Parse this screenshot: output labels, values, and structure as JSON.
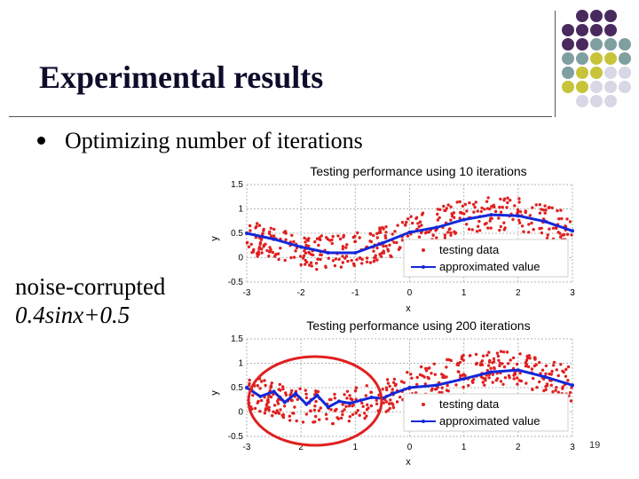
{
  "slide": {
    "title": "Experimental results",
    "bullet": "Optimizing number of iterations",
    "side_line1": "noise-corrupted",
    "side_line2": "0.4sinx+0.5",
    "page_number": "19"
  },
  "theme": {
    "dot_colors": [
      "#4a2a5e",
      "#7f9fa0",
      "#c8c43a",
      "#d9d6e6"
    ],
    "point_color": "#e02020",
    "line_color": "#1428d8",
    "ellipse_color": "#e02020"
  },
  "chart_data": [
    {
      "type": "scatter",
      "title": "Testing performance using 10 iterations",
      "xlabel": "x",
      "ylabel": "y",
      "xlim": [
        -3,
        3
      ],
      "ylim": [
        -0.5,
        1.5
      ],
      "xticks": [
        "-3",
        "-2",
        "-1",
        "0",
        "1",
        "2",
        "3"
      ],
      "yticks": [
        "-0.5",
        "0",
        "0.5",
        "1",
        "1.5"
      ],
      "grid": true,
      "legend_position": "bottom-right",
      "series": [
        {
          "name": "testing data",
          "kind": "scatter",
          "noise_amplitude": 0.35,
          "point_count": 420,
          "model": "0.4sinx+0.5"
        },
        {
          "name": "approximated value",
          "kind": "line",
          "x": [
            -3,
            -2.5,
            -2,
            -1.5,
            -1,
            -0.5,
            0,
            0.5,
            1,
            1.5,
            2,
            2.5,
            3
          ],
          "y": [
            0.5,
            0.38,
            0.22,
            0.1,
            0.1,
            0.3,
            0.52,
            0.62,
            0.78,
            0.88,
            0.86,
            0.74,
            0.55
          ]
        }
      ]
    },
    {
      "type": "scatter",
      "title": "Testing performance using 200 iterations",
      "xlabel": "x",
      "ylabel": "y",
      "xlim": [
        -3,
        3
      ],
      "ylim": [
        -0.5,
        1.5
      ],
      "xticks": [
        "-3",
        "2",
        "1",
        "0",
        "1",
        "2",
        "3"
      ],
      "yticks": [
        "-0.5",
        "0",
        "0.5",
        "1",
        "1.5"
      ],
      "grid": true,
      "legend_position": "bottom-right",
      "annotation": "circled overfit region near x from -3 to 0",
      "series": [
        {
          "name": "testing data",
          "kind": "scatter",
          "noise_amplitude": 0.35,
          "point_count": 420,
          "model": "0.4sinx+0.5"
        },
        {
          "name": "approximated value",
          "kind": "line",
          "x": [
            -3,
            -2.75,
            -2.5,
            -2.3,
            -2.1,
            -1.9,
            -1.7,
            -1.5,
            -1.3,
            -1.1,
            -0.9,
            -0.7,
            -0.5,
            -0.3,
            0,
            0.5,
            1,
            1.5,
            2,
            2.5,
            3
          ],
          "y": [
            0.5,
            0.32,
            0.42,
            0.2,
            0.38,
            0.16,
            0.34,
            0.1,
            0.22,
            0.18,
            0.24,
            0.3,
            0.28,
            0.38,
            0.5,
            0.55,
            0.68,
            0.82,
            0.86,
            0.72,
            0.55
          ]
        }
      ]
    }
  ]
}
